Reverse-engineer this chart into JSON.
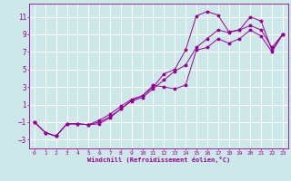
{
  "bg_color": "#cce8e8",
  "grid_color": "#ffffff",
  "line_color": "#990099",
  "xlabel": "Windchill (Refroidissement éolien,°C)",
  "xlim": [
    -0.5,
    23.5
  ],
  "ylim": [
    -4.0,
    12.5
  ],
  "yticks": [
    -3,
    -1,
    1,
    3,
    5,
    7,
    9,
    11
  ],
  "xticks": [
    0,
    1,
    2,
    3,
    4,
    5,
    6,
    7,
    8,
    9,
    10,
    11,
    12,
    13,
    14,
    15,
    16,
    17,
    18,
    19,
    20,
    21,
    22,
    23
  ],
  "curve1_x": [
    0,
    1,
    2,
    3,
    4,
    5,
    6,
    7,
    8,
    9,
    10,
    11,
    12,
    13,
    14,
    15,
    16,
    17,
    18,
    19,
    20,
    21,
    22,
    23
  ],
  "curve1_y": [
    -1.0,
    -2.2,
    -2.6,
    -1.2,
    -1.2,
    -1.3,
    -1.2,
    -0.5,
    0.5,
    1.5,
    2.0,
    3.0,
    4.5,
    5.0,
    7.2,
    11.1,
    11.6,
    11.2,
    9.3,
    9.5,
    11.0,
    10.5,
    7.2,
    9.0
  ],
  "curve2_x": [
    0,
    1,
    2,
    3,
    4,
    5,
    6,
    7,
    8,
    9,
    10,
    11,
    12,
    13,
    14,
    15,
    16,
    17,
    18,
    19,
    20,
    21,
    22,
    23
  ],
  "curve2_y": [
    -1.0,
    -2.2,
    -2.6,
    -1.2,
    -1.2,
    -1.3,
    -1.0,
    -0.4,
    0.5,
    1.4,
    1.8,
    2.8,
    3.8,
    4.8,
    5.5,
    7.5,
    8.5,
    9.5,
    9.2,
    9.5,
    10.0,
    9.5,
    7.5,
    9.0
  ],
  "curve3_x": [
    0,
    1,
    2,
    3,
    4,
    5,
    6,
    7,
    8,
    9,
    10,
    11,
    12,
    13,
    14,
    15,
    16,
    17,
    18,
    19,
    20,
    21,
    22,
    23
  ],
  "curve3_y": [
    -1.0,
    -2.2,
    -2.6,
    -1.2,
    -1.2,
    -1.3,
    -0.8,
    -0.1,
    0.8,
    1.6,
    2.0,
    3.2,
    3.0,
    2.8,
    3.2,
    7.2,
    7.5,
    8.5,
    8.0,
    8.5,
    9.5,
    8.8,
    7.0,
    9.0
  ]
}
